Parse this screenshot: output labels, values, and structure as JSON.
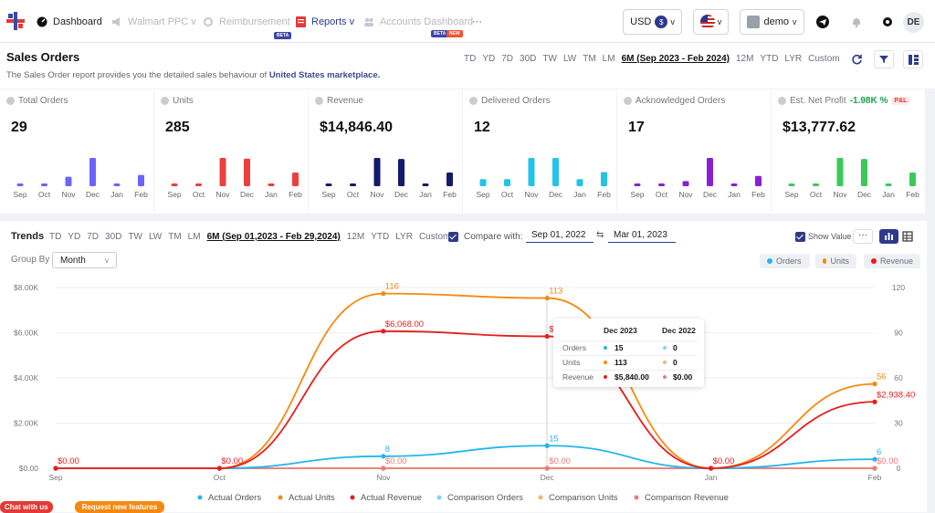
{
  "nav": {
    "dashboard": "Dashboard",
    "walmart_ppc": "Walmart PPC",
    "reimbursement": "Reimbursement",
    "reimbursement_badge": "BETA",
    "reports": "Reports",
    "accounts_dashboard": "Accounts Dashboard",
    "accounts_badge_1": "BETA",
    "accounts_badge_2": "NEW",
    "more": "···",
    "currency": "USD",
    "currency_symbol": "$",
    "user": "demo",
    "avatar_initials": "DE"
  },
  "page": {
    "title": "Sales Orders",
    "desc_prefix": "The Sales Order report provides you the detailed sales behaviour of",
    "desc_market": "United States marketplace."
  },
  "ranges": [
    "TD",
    "YD",
    "7D",
    "30D",
    "TW",
    "LW",
    "TM",
    "LM",
    "6M (Sep 2023 - Feb 2024)",
    "12M",
    "YTD",
    "LYR",
    "Custom"
  ],
  "cards": [
    {
      "label": "Total Orders",
      "value": "29",
      "color": "#6c63ff",
      "months": [
        "Sep",
        "Oct",
        "Nov",
        "Dec",
        "Jan",
        "Feb"
      ],
      "bars": [
        1,
        1,
        5,
        15,
        1,
        6
      ]
    },
    {
      "label": "Units",
      "value": "285",
      "color": "#f03e3e",
      "months": [
        "Sep",
        "Oct",
        "Nov",
        "Dec",
        "Jan",
        "Feb"
      ],
      "bars": [
        1,
        1,
        116,
        113,
        1,
        56
      ]
    },
    {
      "label": "Revenue",
      "value": "$14,846.40",
      "color": "#141a6e",
      "months": [
        "Sep",
        "Oct",
        "Nov",
        "Dec",
        "Jan",
        "Feb"
      ],
      "bars": [
        1,
        1,
        6068,
        5840,
        1,
        2938
      ]
    },
    {
      "label": "Delivered Orders",
      "value": "12",
      "color": "#22c3ea",
      "months": [
        "Sep",
        "Oct",
        "Nov",
        "Dec",
        "Jan",
        "Feb"
      ],
      "bars": [
        1,
        1,
        4,
        4,
        1,
        2
      ]
    },
    {
      "label": "Acknowledged Orders",
      "value": "17",
      "color": "#8a1ed6",
      "months": [
        "Sep",
        "Oct",
        "Nov",
        "Dec",
        "Jan",
        "Feb"
      ],
      "bars": [
        1,
        1,
        2,
        11,
        1,
        4
      ]
    },
    {
      "label": "Est. Net Profit",
      "value": "$13,777.62",
      "color": "#3cc95a",
      "months": [
        "Sep",
        "Oct",
        "Nov",
        "Dec",
        "Jan",
        "Feb"
      ],
      "bars": [
        1,
        1,
        5600,
        5400,
        1,
        2700
      ],
      "pct": "-1.98K %",
      "badge": "P&L"
    }
  ],
  "trends": {
    "title": "Trends",
    "ranges": [
      "TD",
      "YD",
      "7D",
      "30D",
      "TW",
      "LW",
      "TM",
      "LM",
      "6M (Sep 01,2023 - Feb 29,2024)",
      "12M",
      "YTD",
      "LYR",
      "Custom"
    ],
    "compare_label": "Compare with:",
    "date_from": "Sep 01, 2022",
    "date_to": "Mar 01, 2023",
    "show_value": "Show Value",
    "group_by": "Group By",
    "group_value": "Month",
    "legend_top": [
      {
        "name": "Orders",
        "color": "#22b8ea"
      },
      {
        "name": "Units",
        "color": "#f5890f"
      },
      {
        "name": "Revenue",
        "color": "#e81d1d"
      }
    ],
    "tooltip": {
      "col1": "Dec 2023",
      "col2": "Dec 2022",
      "rows": [
        {
          "label": "Orders",
          "v1": "15",
          "v2": "0"
        },
        {
          "label": "Units",
          "v1": "113",
          "v2": "0"
        },
        {
          "label": "Revenue",
          "v1": "$5,840.00",
          "v2": "$0.00"
        }
      ]
    }
  },
  "chart_data": {
    "type": "line",
    "x": [
      "Sep",
      "Oct",
      "Nov",
      "Dec",
      "Jan",
      "Feb"
    ],
    "y_left_ticks": [
      "$0.00",
      "$2.00K",
      "$4.00K",
      "$6.00K",
      "$8.00K"
    ],
    "y_right_ticks": [
      "0",
      "30",
      "60",
      "90",
      "120"
    ],
    "ylim_left": [
      0,
      8000
    ],
    "ylim_right": [
      0,
      120
    ],
    "series": [
      {
        "name": "Actual Orders",
        "axis": "right",
        "color": "#22b8ea",
        "values": [
          0,
          0,
          8,
          15,
          0,
          6
        ],
        "labels": [
          "",
          "",
          "8",
          "15",
          "",
          "6"
        ]
      },
      {
        "name": "Actual Units",
        "axis": "right",
        "color": "#f5890f",
        "values": [
          0,
          0,
          116,
          113,
          0,
          56
        ],
        "labels": [
          "",
          "",
          "116",
          "113",
          "",
          "56"
        ]
      },
      {
        "name": "Actual Revenue",
        "axis": "left",
        "color": "#e81d1d",
        "values": [
          0,
          0,
          6068,
          5840,
          0,
          2938.4
        ],
        "labels": [
          "$0.00",
          "$0.00",
          "$6,068.00",
          "$",
          "$0.00",
          "$2,938.40"
        ]
      },
      {
        "name": "Comparison Orders",
        "axis": "right",
        "color": "#7fd6f2",
        "values": [
          0,
          0,
          0,
          0,
          0,
          0
        ]
      },
      {
        "name": "Comparison Units",
        "axis": "right",
        "color": "#f8b46a",
        "values": [
          0,
          0,
          0,
          0,
          0,
          0
        ]
      },
      {
        "name": "Comparison Revenue",
        "axis": "left",
        "color": "#ee7a7a",
        "values": [
          0,
          0,
          0,
          0,
          0,
          0
        ],
        "labels": [
          "",
          "",
          "$0.00",
          "$0.00",
          "",
          "$0.00"
        ]
      }
    ]
  },
  "footer": {
    "chat": "Chat with us",
    "request": "Request new features"
  }
}
